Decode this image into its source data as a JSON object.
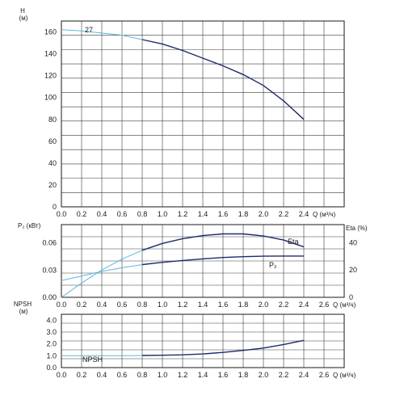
{
  "chart_data": [
    {
      "type": "line",
      "id": "head",
      "ylabel": "H",
      "yunit": "(м)",
      "xlabel": "Q (м³/ч)",
      "xlim": [
        0,
        2.8
      ],
      "ylim": [
        0,
        170
      ],
      "xticks": [
        "0.0",
        "0.2",
        "0.4",
        "0.6",
        "0.8",
        "1.0",
        "1.2",
        "1.4",
        "1.6",
        "1.8",
        "2.0",
        "2.2",
        "2.4"
      ],
      "yticks": [
        "0",
        "20",
        "40",
        "60",
        "80",
        "100",
        "120",
        "140",
        "160"
      ],
      "ytick_values": [
        0,
        20,
        40,
        60,
        80,
        100,
        120,
        140,
        160
      ],
      "annotation": "27",
      "annotation_at": [
        0.2,
        162
      ],
      "series": [
        {
          "color": "#1c2a6b",
          "extrapolated_color": "#5fb6dd",
          "solid_from": 0.8,
          "x": [
            0.0,
            0.2,
            0.4,
            0.6,
            0.8,
            1.0,
            1.2,
            1.4,
            1.6,
            1.8,
            2.0,
            2.2,
            2.4
          ],
          "y": [
            162,
            161,
            159,
            157,
            153,
            149,
            143,
            136,
            129,
            121,
            111,
            97,
            80
          ]
        }
      ]
    },
    {
      "type": "line",
      "id": "power-efficiency",
      "ylabel": "P₂ (кВт)",
      "ylabel_right": "Eta (%)",
      "xlabel": "Q (м³/ч)",
      "xlim": [
        0,
        2.8
      ],
      "ylim": [
        0,
        0.08
      ],
      "ylim_right": [
        0,
        53.33
      ],
      "xticks": [
        "0.0",
        "0.2",
        "0.4",
        "0.6",
        "0.8",
        "1.0",
        "1.2",
        "1.4",
        "1.6",
        "1.8",
        "2.0",
        "2.2",
        "2.4",
        "2.6"
      ],
      "yticks": [
        "0.00",
        "0.03",
        "0.06"
      ],
      "ytick_values": [
        0,
        0.03,
        0.06
      ],
      "yticks_right": [
        "0",
        "20",
        "40"
      ],
      "ytick_values_right": [
        0,
        20,
        40
      ],
      "series": [
        {
          "name": "Eta",
          "axis": "right",
          "color": "#1c2a6b",
          "extrapolated_color": "#5fb6dd",
          "solid_from": 0.8,
          "x": [
            0.0,
            0.2,
            0.4,
            0.6,
            0.8,
            1.0,
            1.2,
            1.4,
            1.6,
            1.8,
            2.0,
            2.2,
            2.4
          ],
          "y": [
            0,
            10.5,
            20,
            28,
            34.5,
            39.5,
            43,
            45.3,
            46.5,
            46.5,
            45,
            42,
            37
          ]
        },
        {
          "name": "P₂",
          "axis": "left",
          "color": "#1c2a6b",
          "extrapolated_color": "#5fb6dd",
          "solid_from": 0.8,
          "x": [
            0.0,
            0.2,
            0.4,
            0.6,
            0.8,
            1.0,
            1.2,
            1.4,
            1.6,
            1.8,
            2.0,
            2.2,
            2.4
          ],
          "y": [
            0.0185,
            0.0235,
            0.0285,
            0.0325,
            0.036,
            0.0385,
            0.0405,
            0.0423,
            0.0438,
            0.0447,
            0.0452,
            0.0454,
            0.0454
          ]
        }
      ]
    },
    {
      "type": "line",
      "id": "npsh",
      "ylabel": "NPSH",
      "yunit": "(м)",
      "xlabel": "Q (м³/ч)",
      "xlim": [
        0,
        2.8
      ],
      "ylim": [
        0,
        4.5
      ],
      "xticks": [
        "0.0",
        "0.2",
        "0.4",
        "0.6",
        "0.8",
        "1.0",
        "1.2",
        "1.4",
        "1.6",
        "1.8",
        "2.0",
        "2.2",
        "2.4",
        "2.6"
      ],
      "yticks": [
        "0.0",
        "1.0",
        "2.0",
        "3.0",
        "4.0"
      ],
      "ytick_values": [
        0,
        1,
        2,
        3,
        4
      ],
      "series": [
        {
          "name": "NPSH",
          "color": "#1c2a6b",
          "extrapolated_color": "#5fb6dd",
          "solid_from": 0.8,
          "x": [
            0.0,
            0.2,
            0.4,
            0.6,
            0.8,
            1.0,
            1.2,
            1.4,
            1.6,
            1.8,
            2.0,
            2.2,
            2.4
          ],
          "y": [
            1.0,
            1.0,
            1.0,
            1.0,
            1.02,
            1.04,
            1.08,
            1.15,
            1.28,
            1.45,
            1.65,
            1.95,
            2.3
          ]
        }
      ]
    }
  ]
}
